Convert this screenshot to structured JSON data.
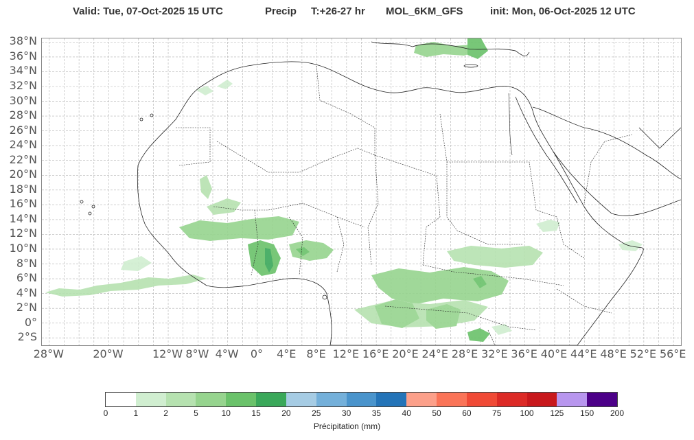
{
  "title": {
    "valid": "Valid: Tue, 07-Oct-2025   15 UTC",
    "field": "Precip",
    "forecast_hour": "T:+26-27 hr",
    "model": "MOL_6KM_GFS",
    "init": "init: Mon, 06-Oct-2025   12 UTC"
  },
  "map": {
    "lat_labels": [
      "38°N",
      "36°N",
      "34°N",
      "32°N",
      "30°N",
      "28°N",
      "26°N",
      "24°N",
      "22°N",
      "20°N",
      "18°N",
      "16°N",
      "14°N",
      "12°N",
      "10°N",
      "8°N",
      "6°N",
      "4°N",
      "2°N",
      "0°",
      "2°S"
    ],
    "lon_labels": [
      "28°W",
      "20°W",
      "12°W",
      "8°W",
      "4°W",
      "0°",
      "4°E",
      "8°E",
      "12°E",
      "16°E",
      "20°E",
      "24°E",
      "28°E",
      "32°E",
      "36°E",
      "40°E",
      "44°E",
      "48°E",
      "52°E",
      "56°E"
    ],
    "land_color": "#ffffff",
    "coast_color": "#222222",
    "grid_color": "#b0b0b0"
  },
  "colorbar": {
    "label": "Précipitation (mm)",
    "ticks": [
      "0",
      "1",
      "2",
      "5",
      "10",
      "15",
      "20",
      "25",
      "30",
      "35",
      "40",
      "50",
      "60",
      "75",
      "100",
      "125",
      "150",
      "200"
    ],
    "colors": [
      "#ffffff",
      "#d0eed0",
      "#b6e2b0",
      "#96d48e",
      "#6ac26a",
      "#3aa85a",
      "#a6cce4",
      "#74b0da",
      "#4a94cc",
      "#2474b8",
      "#fca08a",
      "#fa7458",
      "#f04a36",
      "#dc2a26",
      "#c8181c",
      "#b896ee",
      "#4c0088"
    ]
  }
}
